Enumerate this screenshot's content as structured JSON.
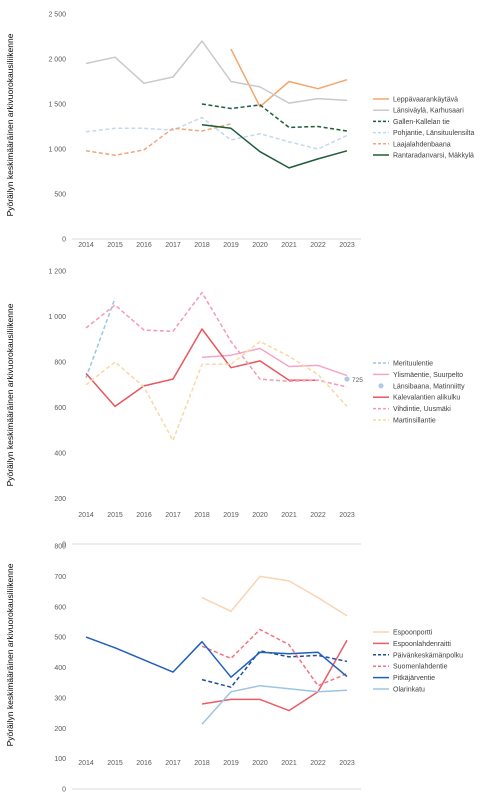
{
  "chart_data": [
    {
      "type": "line",
      "ylabel": "Pyöräilyn keskimääräinen arkivuorokausiliikenne",
      "categories": [
        "2014",
        "2015",
        "2016",
        "2017",
        "2018",
        "2019",
        "2020",
        "2021",
        "2022",
        "2023"
      ],
      "ylim": [
        0,
        2500
      ],
      "yticks": [
        0,
        500,
        1000,
        1500,
        2000,
        2500
      ],
      "ytick_labels": [
        "0",
        "500",
        "1 000",
        "1 500",
        "2 000",
        "2 500"
      ],
      "legend_position": "right",
      "series": [
        {
          "name": "Leppävaarankäytävä",
          "color": "#f4a56b",
          "dash": "solid",
          "values": [
            null,
            null,
            null,
            null,
            null,
            2110,
            1470,
            1750,
            1670,
            1770
          ]
        },
        {
          "name": "Länsiväylä, Karhusaari",
          "color": "#c9c9c9",
          "dash": "solid",
          "values": [
            1950,
            2020,
            1730,
            1800,
            2200,
            1750,
            1690,
            1510,
            1560,
            1540
          ]
        },
        {
          "name": "Gallen-Kallelan tie",
          "color": "#1e5c3a",
          "dash": "dash",
          "values": [
            null,
            null,
            null,
            null,
            1500,
            1450,
            1490,
            1240,
            1250,
            1200
          ]
        },
        {
          "name": "Pohjantie, Länsituulensilta",
          "color": "#c5d9ec",
          "dash": "dash",
          "values": [
            1190,
            1230,
            1230,
            1210,
            1350,
            1100,
            1170,
            1080,
            1000,
            1150
          ]
        },
        {
          "name": "Laajalahdenbaana",
          "color": "#f0a677",
          "dash": "dash",
          "values": [
            980,
            930,
            990,
            1230,
            1200,
            1280,
            null,
            null,
            null,
            null
          ]
        },
        {
          "name": "Rantaradanvarsi, Mäkkylä",
          "color": "#1e5c3a",
          "dash": "solid",
          "values": [
            null,
            null,
            null,
            null,
            1270,
            1230,
            970,
            790,
            890,
            980
          ]
        }
      ]
    },
    {
      "type": "line",
      "ylabel": "Pyöräilyn keskimääräinen arkivuorokausiliikenne",
      "categories": [
        "2014",
        "2015",
        "2016",
        "2017",
        "2018",
        "2019",
        "2020",
        "2021",
        "2022",
        "2023"
      ],
      "ylim": [
        0,
        1200
      ],
      "yticks": [
        0,
        200,
        400,
        600,
        800,
        1000,
        1200
      ],
      "ytick_labels": [
        "0",
        "200",
        "400",
        "600",
        "800",
        "1 000",
        "1 200"
      ],
      "legend_position": "right",
      "annotations": [
        {
          "series": "Länsibaana, Matinniitty",
          "year": "2023",
          "text": "725"
        }
      ],
      "series": [
        {
          "name": "Merituulentie",
          "color": "#9dc3e6",
          "dash": "dash",
          "values": [
            730,
            1080,
            null,
            null,
            null,
            null,
            null,
            null,
            null,
            null
          ]
        },
        {
          "name": "Ylismäentie, Suurpelto",
          "color": "#f4a6c6",
          "dash": "solid",
          "values": [
            null,
            null,
            null,
            null,
            820,
            830,
            860,
            780,
            785,
            740
          ]
        },
        {
          "name": "Länsibaana, Matinniitty",
          "color": "#b4c7e7",
          "dash": "marker",
          "values": [
            null,
            null,
            null,
            null,
            null,
            null,
            null,
            null,
            null,
            725
          ]
        },
        {
          "name": "Kalevalantien alikulku",
          "color": "#e8575c",
          "dash": "solid",
          "values": [
            750,
            605,
            695,
            725,
            945,
            775,
            805,
            720,
            720,
            null
          ]
        },
        {
          "name": "Vihdintie, Uusmäki",
          "color": "#f49ab2",
          "dash": "dash",
          "values": [
            950,
            1050,
            940,
            935,
            1105,
            890,
            725,
            715,
            720,
            690
          ]
        },
        {
          "name": "Martinsillantie",
          "color": "#fbd7a6",
          "dash": "dash",
          "values": [
            700,
            800,
            690,
            455,
            790,
            790,
            890,
            825,
            745,
            605
          ]
        }
      ]
    },
    {
      "type": "line",
      "ylabel": "Pyöräilyn keskimääräinen arkivuorokausiliikenne",
      "categories": [
        "2014",
        "2015",
        "2016",
        "2017",
        "2018",
        "2019",
        "2020",
        "2021",
        "2022",
        "2023"
      ],
      "ylim": [
        0,
        800
      ],
      "yticks": [
        0,
        100,
        200,
        300,
        400,
        500,
        600,
        700,
        800
      ],
      "ytick_labels": [
        "0",
        "100",
        "200",
        "300",
        "400",
        "500",
        "600",
        "700",
        "800"
      ],
      "legend_position": "right",
      "series": [
        {
          "name": "Espoonportti",
          "color": "#fbd3b0",
          "dash": "solid",
          "values": [
            null,
            null,
            null,
            null,
            630,
            585,
            700,
            685,
            630,
            570
          ]
        },
        {
          "name": "Espoonlahdenraitti",
          "color": "#ea5c66",
          "dash": "solid",
          "values": [
            null,
            null,
            null,
            null,
            280,
            295,
            295,
            258,
            320,
            490
          ]
        },
        {
          "name": "Päivänkeskämänpolku",
          "color": "#1f4e96",
          "dash": "dash",
          "values": [
            null,
            null,
            null,
            null,
            360,
            335,
            455,
            435,
            440,
            420
          ]
        },
        {
          "name": "Suomenlahdentie",
          "color": "#f27480",
          "dash": "dash",
          "values": [
            null,
            null,
            null,
            null,
            470,
            430,
            525,
            475,
            340,
            380
          ]
        },
        {
          "name": "Pitkäjärventie",
          "color": "#1f5fbf",
          "dash": "solid",
          "values": [
            500,
            465,
            425,
            385,
            485,
            368,
            450,
            445,
            450,
            370
          ]
        },
        {
          "name": "Olarinkatu",
          "color": "#9dc3e6",
          "dash": "solid",
          "values": [
            null,
            null,
            null,
            null,
            213,
            320,
            340,
            330,
            320,
            325
          ]
        }
      ]
    }
  ]
}
